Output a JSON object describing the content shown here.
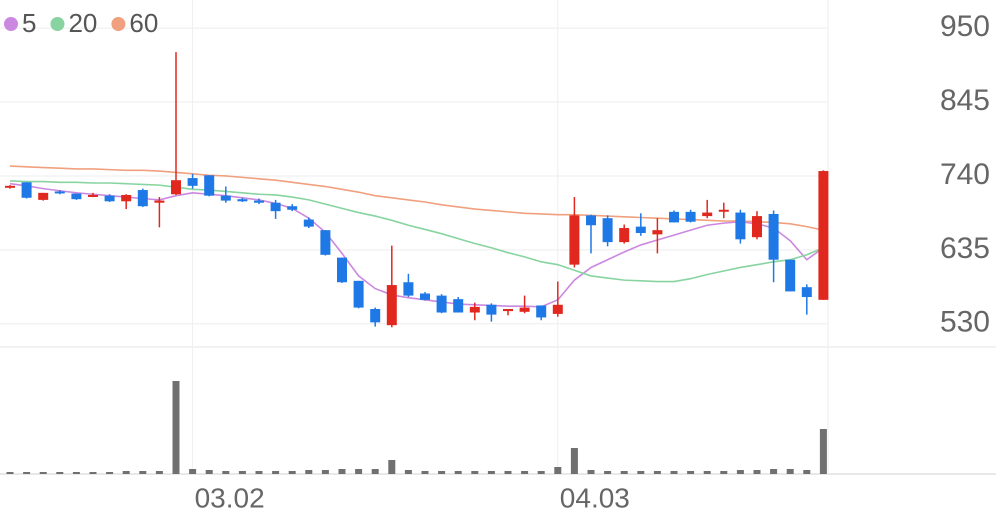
{
  "chart_data": {
    "type": "candlestick",
    "categories": [
      null,
      null,
      null,
      null,
      null,
      null,
      null,
      null,
      null,
      null,
      null,
      "03.02",
      null,
      null,
      null,
      null,
      null,
      null,
      null,
      null,
      null,
      null,
      null,
      null,
      null,
      null,
      null,
      null,
      null,
      null,
      null,
      null,
      null,
      "04.03",
      null,
      null,
      null,
      null,
      null,
      null,
      null,
      null,
      null,
      null,
      null,
      null,
      null,
      null,
      null,
      null
    ],
    "open": [
      724,
      731,
      706,
      718,
      715,
      711,
      712,
      704,
      720,
      702,
      714,
      737,
      741,
      712,
      707,
      705,
      702,
      697,
      678,
      663,
      624,
      591,
      551,
      528,
      589,
      573,
      570,
      565,
      546,
      557,
      548,
      547,
      556,
      544,
      614,
      684,
      680,
      646,
      668,
      657,
      689,
      689,
      683,
      690,
      688,
      653,
      686,
      621,
      582,
      564
    ],
    "high": [
      727,
      731,
      716,
      720,
      715,
      716,
      714,
      714,
      722,
      710,
      916,
      743,
      741,
      725,
      709,
      708,
      706,
      700,
      681,
      663,
      624,
      591,
      553,
      641,
      601,
      575,
      572,
      568,
      560,
      559,
      551,
      570,
      556,
      590,
      710,
      685,
      684,
      671,
      687,
      680,
      691,
      692,
      706,
      702,
      692,
      690,
      691,
      621,
      586,
      748
    ],
    "low": [
      722,
      708,
      705,
      714,
      706,
      710,
      703,
      693,
      696,
      667,
      713,
      722,
      711,
      702,
      703,
      700,
      679,
      690,
      666,
      627,
      588,
      552,
      526,
      525,
      568,
      563,
      545,
      546,
      535,
      533,
      542,
      545,
      535,
      540,
      610,
      630,
      640,
      644,
      655,
      630,
      674,
      674,
      680,
      680,
      644,
      650,
      589,
      576,
      543,
      564
    ],
    "close": [
      726,
      709,
      716,
      716,
      707,
      713,
      704,
      713,
      697,
      705,
      734,
      726,
      712,
      705,
      704,
      702,
      690,
      692,
      668,
      628,
      589,
      553,
      532,
      585,
      570,
      564,
      546,
      546,
      554,
      543,
      551,
      553,
      539,
      557,
      684,
      670,
      646,
      666,
      659,
      663,
      674,
      675,
      688,
      692,
      650,
      683,
      621,
      576,
      568,
      747
    ],
    "volume": [
      2,
      2,
      2,
      2,
      2,
      2,
      2,
      3,
      3,
      3,
      93,
      5,
      4,
      3,
      3,
      3,
      3,
      3,
      4,
      4,
      5,
      5,
      5,
      14,
      4,
      3,
      3,
      3,
      3,
      3,
      3,
      3,
      3,
      7,
      26,
      4,
      3,
      3,
      3,
      3,
      3,
      3,
      3,
      3,
      4,
      4,
      5,
      5,
      4,
      45
    ],
    "up_color": "#e0281e",
    "down_color": "#1e78e6",
    "volume_color": "#707070",
    "series": [
      {
        "name": "5",
        "color": "#cc88e0",
        "values": [
          729,
          726,
          722,
          719,
          716,
          714,
          712,
          710,
          708,
          706,
          712,
          716,
          714,
          712,
          709,
          706,
          701,
          694,
          680,
          660,
          630,
          598,
          580,
          571,
          567,
          564,
          561,
          558,
          557,
          556,
          555,
          555,
          554,
          564,
          592,
          610,
          621,
          632,
          642,
          649,
          656,
          663,
          670,
          673,
          675,
          672,
          666,
          648,
          621,
          638
        ]
      },
      {
        "name": "20",
        "color": "#88d4a0",
        "values": [
          733,
          732,
          732,
          731,
          731,
          730,
          730,
          729,
          728,
          727,
          724,
          721,
          720,
          718,
          716,
          714,
          713,
          710,
          706,
          700,
          694,
          688,
          683,
          677,
          670,
          664,
          658,
          651,
          644,
          638,
          631,
          625,
          618,
          614,
          606,
          598,
          595,
          592,
          591,
          590,
          590,
          594,
          600,
          605,
          610,
          614,
          618,
          621,
          628,
          638
        ]
      },
      {
        "name": "60",
        "color": "#f0a07e",
        "values": [
          754,
          753,
          752,
          751,
          750,
          750,
          749,
          748,
          748,
          747,
          745,
          743,
          741,
          740,
          738,
          736,
          734,
          731,
          728,
          725,
          721,
          717,
          712,
          709,
          706,
          703,
          699,
          696,
          693,
          691,
          689,
          687,
          686,
          685,
          685,
          684,
          683,
          682,
          681,
          680,
          679,
          678,
          677,
          676,
          676,
          675,
          674,
          672,
          668,
          663
        ]
      }
    ],
    "ylim": [
      497,
      990
    ],
    "yticks": [
      530,
      635,
      740,
      845,
      950
    ],
    "volume_lim": [
      0,
      100
    ],
    "grid": true
  }
}
